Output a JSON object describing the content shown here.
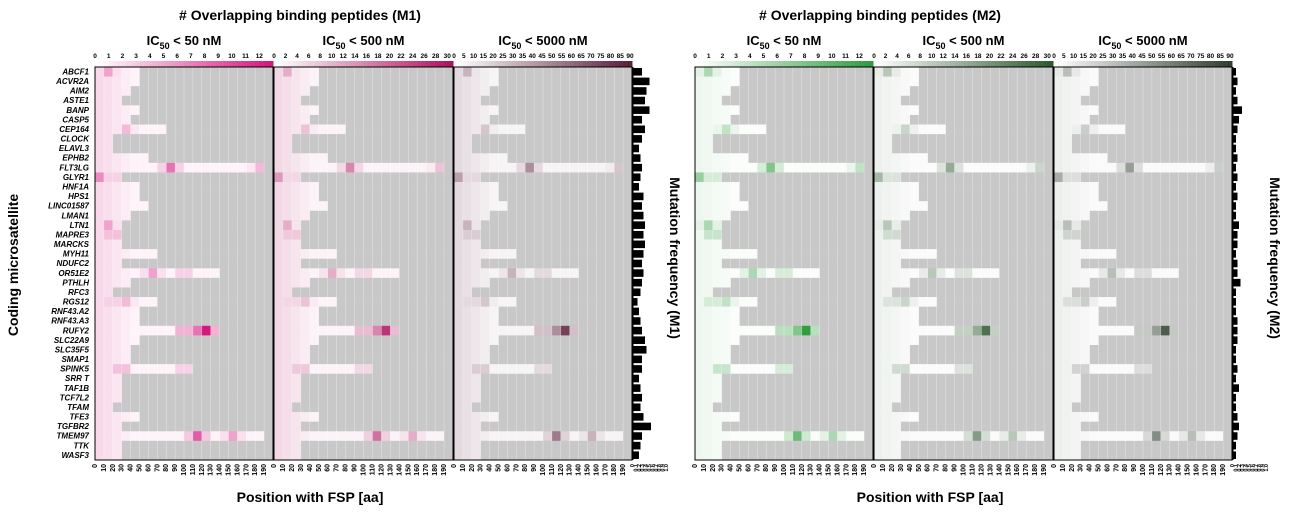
{
  "chart_data": {
    "type": "heatmap",
    "ylabel": "Coding microsatellite",
    "genes": [
      "ABCF1",
      "ACVR2A",
      "AIM2",
      "ASTE1",
      "BANP",
      "CASP5",
      "CEP164",
      "CLOCK",
      "ELAVL3",
      "EPHB2",
      "FLT3LG",
      "GLYR1",
      "HNF1A",
      "HPS1",
      "LINC01587",
      "LMAN1",
      "LTN1",
      "MAPRE3",
      "MARCKS",
      "MYH11",
      "NDUFC2",
      "OR51E2",
      "PTHLH",
      "RFC3",
      "RGS12",
      "RNF43.A2",
      "RNF43.A3",
      "RUFY2",
      "SLC22A9",
      "SLC35F5",
      "SMAP1",
      "SPINK5",
      "SRR_T",
      "TAF1B",
      "TCF7L2",
      "TFAM",
      "TFE3",
      "TGFBR2",
      "TMEM97",
      "TTK",
      "WASF3"
    ],
    "x_tick_labels": [
      "0",
      "10",
      "20",
      "30",
      "40",
      "50",
      "60",
      "70",
      "80",
      "90",
      "100",
      "110",
      "120",
      "130",
      "140",
      "150",
      "160",
      "170",
      "180",
      "190"
    ],
    "mutfreq_tick_labels": [
      "0",
      "0.1",
      "0.2",
      "0.3",
      "0.4",
      "0.5",
      "0.6",
      "0.7",
      "0.8",
      "0.9",
      "1.0"
    ],
    "groups": [
      {
        "title": "# Overlapping binding peptides (M1)",
        "xlabel": "Position with FSP [aa]",
        "side_label": "Mutation frequency (M1)",
        "color_dark": [
          "#d6177f",
          "#b0125f",
          "#5c1f3c"
        ],
        "mutation_frequency": [
          0.3,
          0.55,
          0.45,
          0.4,
          0.55,
          0.3,
          0.4,
          0.3,
          0.2,
          0.25,
          0.3,
          0.25,
          0.2,
          0.35,
          0.3,
          0.35,
          0.4,
          0.35,
          0.4,
          0.35,
          0.3,
          0.35,
          0.3,
          0.25,
          0.15,
          0.2,
          0.25,
          0.3,
          0.4,
          0.45,
          0.3,
          0.3,
          0.2,
          0.25,
          0.3,
          0.25,
          0.35,
          0.6,
          0.3,
          0.25,
          0.2
        ],
        "panels": [
          {
            "title_prefix": "IC",
            "title_sub": "50",
            "title_suffix": " < 50 nM",
            "scale_max": 13,
            "scale_ticks": [
              "0",
              "1",
              "2",
              "3",
              "4",
              "5",
              "6",
              "7",
              "8",
              "9",
              "10",
              "11",
              "12"
            ]
          },
          {
            "title_prefix": "IC",
            "title_sub": "50",
            "title_suffix": " < 500 nM",
            "scale_max": 31,
            "scale_ticks": [
              "0",
              "2",
              "4",
              "6",
              "8",
              "10",
              "12",
              "14",
              "16",
              "18",
              "20",
              "22",
              "24",
              "26",
              "28",
              "30"
            ]
          },
          {
            "title_prefix": "IC",
            "title_sub": "50",
            "title_suffix": " < 5000 nM",
            "scale_max": 91,
            "scale_ticks": [
              "0",
              "5",
              "10",
              "15",
              "20",
              "25",
              "30",
              "35",
              "40",
              "45",
              "50",
              "55",
              "60",
              "65",
              "70",
              "75",
              "80",
              "85",
              "90"
            ]
          }
        ]
      },
      {
        "title": "# Overlapping binding peptides (M2)",
        "xlabel": "Position with FSP [aa]",
        "side_label": "Mutation frequency (M2)",
        "color_dark": [
          "#2e9e3e",
          "#2d5a2f",
          "#2f3f2f"
        ],
        "mutation_frequency": [
          0.1,
          0.15,
          0.1,
          0.15,
          0.3,
          0.2,
          0.15,
          0.1,
          0.1,
          0.15,
          0.1,
          0.15,
          0.1,
          0.15,
          0.1,
          0.1,
          0.2,
          0.15,
          0.15,
          0.1,
          0.15,
          0.15,
          0.25,
          0.1,
          0.1,
          0.1,
          0.15,
          0.15,
          0.15,
          0.1,
          0.1,
          0.15,
          0.1,
          0.2,
          0.1,
          0.1,
          0.15,
          0.2,
          0.15,
          0.1,
          0.1
        ],
        "panels": [
          {
            "title_prefix": "IC",
            "title_sub": "50",
            "title_suffix": " < 50 nM",
            "scale_max": 13,
            "scale_ticks": [
              "0",
              "1",
              "2",
              "3",
              "4",
              "5",
              "6",
              "7",
              "8",
              "9",
              "10",
              "11",
              "12"
            ]
          },
          {
            "title_prefix": "IC",
            "title_sub": "50",
            "title_suffix": " < 500 nM",
            "scale_max": 31,
            "scale_ticks": [
              "0",
              "2",
              "4",
              "6",
              "8",
              "10",
              "12",
              "14",
              "16",
              "18",
              "20",
              "22",
              "24",
              "26",
              "28",
              "30"
            ]
          },
          {
            "title_prefix": "IC",
            "title_sub": "50",
            "title_suffix": " < 5000 nM",
            "scale_max": 91,
            "scale_ticks": [
              "0",
              "5",
              "10",
              "15",
              "20",
              "25",
              "30",
              "35",
              "40",
              "45",
              "50",
              "55",
              "60",
              "65",
              "70",
              "75",
              "80",
              "85",
              "90"
            ]
          }
        ]
      }
    ],
    "fsp_length_aa": [
      45,
      45,
      40,
      25,
      45,
      35,
      75,
      15,
      15,
      60,
      190,
      30,
      45,
      45,
      60,
      40,
      25,
      30,
      30,
      70,
      30,
      140,
      40,
      20,
      70,
      45,
      45,
      140,
      45,
      35,
      40,
      110,
      30,
      30,
      30,
      15,
      45,
      25,
      190,
      25,
      25
    ],
    "hotspots_aa": {
      "ABCF1": [
        [
          10,
          0.4
        ]
      ],
      "GLYR1": [
        [
          0,
          0.5
        ],
        [
          15,
          0.3
        ]
      ],
      "RUFY2": [
        [
          95,
          0.5
        ],
        [
          120,
          1.0
        ],
        [
          110,
          0.6
        ]
      ],
      "TMEM97": [
        [
          110,
          0.7
        ],
        [
          150,
          0.4
        ]
      ],
      "SPINK5": [
        [
          25,
          0.4
        ],
        [
          95,
          0.3
        ]
      ],
      "MAPRE3": [
        [
          15,
          0.4
        ]
      ],
      "RGS12": [
        [
          15,
          0.3
        ],
        [
          30,
          0.3
        ]
      ],
      "FLT3LG": [
        [
          80,
          0.6
        ],
        [
          180,
          0.3
        ]
      ],
      "TFE3": [
        [
          120,
          0.5
        ]
      ],
      "OR51E2": [
        [
          60,
          0.4
        ],
        [
          95,
          0.3
        ]
      ],
      "CEP164": [
        [
          30,
          0.3
        ]
      ],
      "LTN1": [
        [
          10,
          0.4
        ]
      ]
    }
  }
}
